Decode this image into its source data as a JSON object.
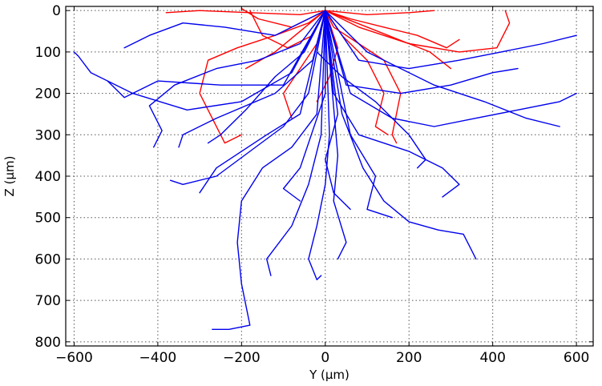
{
  "chart_data": {
    "type": "line",
    "title": "",
    "xlabel": "Y (μm)",
    "ylabel": "Z (μm)",
    "xlim": [
      -620,
      640
    ],
    "ylim": [
      810,
      -10
    ],
    "y_inverted": true,
    "grid": true,
    "x_ticks": [
      -600,
      -400,
      -200,
      0,
      200,
      400,
      600
    ],
    "y_ticks": [
      0,
      100,
      200,
      300,
      400,
      500,
      600,
      700,
      800
    ],
    "x_tick_labels": [
      "−600",
      "−400",
      "−200",
      "0",
      "200",
      "400",
      "600"
    ],
    "y_tick_labels": [
      "0",
      "100",
      "200",
      "300",
      "400",
      "500",
      "600",
      "700",
      "800"
    ],
    "series": [
      {
        "color": "#ff0000",
        "paths": [
          [
            [
              0,
              0
            ],
            [
              -40,
              30
            ],
            [
              -120,
              60
            ],
            [
              -210,
              90
            ],
            [
              -280,
              120
            ],
            [
              -300,
              200
            ],
            [
              -240,
              320
            ],
            [
              -200,
              300
            ]
          ],
          [
            [
              0,
              0
            ],
            [
              -60,
              10
            ],
            [
              -180,
              5
            ],
            [
              -300,
              0
            ],
            [
              -380,
              5
            ]
          ],
          [
            [
              0,
              0
            ],
            [
              -30,
              60
            ],
            [
              -90,
              90
            ],
            [
              -150,
              60
            ],
            [
              -180,
              0
            ]
          ],
          [
            [
              0,
              0
            ],
            [
              20,
              40
            ],
            [
              80,
              80
            ],
            [
              140,
              120
            ],
            [
              180,
              200
            ],
            [
              160,
              300
            ],
            [
              170,
              320
            ]
          ],
          [
            [
              0,
              0
            ],
            [
              60,
              20
            ],
            [
              140,
              40
            ],
            [
              220,
              60
            ],
            [
              290,
              90
            ],
            [
              320,
              70
            ]
          ],
          [
            [
              0,
              0
            ],
            [
              100,
              10
            ],
            [
              200,
              5
            ],
            [
              260,
              0
            ]
          ],
          [
            [
              0,
              0
            ],
            [
              80,
              40
            ],
            [
              200,
              80
            ],
            [
              320,
              100
            ],
            [
              410,
              90
            ],
            [
              440,
              30
            ],
            [
              430,
              0
            ]
          ],
          [
            [
              0,
              0
            ],
            [
              40,
              60
            ],
            [
              100,
              120
            ],
            [
              140,
              200
            ],
            [
              120,
              280
            ],
            [
              150,
              300
            ]
          ],
          [
            [
              0,
              0
            ],
            [
              -20,
              80
            ],
            [
              -60,
              140
            ],
            [
              -100,
              200
            ],
            [
              -80,
              260
            ]
          ],
          [
            [
              0,
              0
            ],
            [
              -80,
              40
            ],
            [
              -160,
              20
            ],
            [
              -200,
              -5
            ]
          ],
          [
            [
              0,
              0
            ],
            [
              30,
              90
            ],
            [
              10,
              160
            ],
            [
              -20,
              220
            ]
          ],
          [
            [
              0,
              0
            ],
            [
              -120,
              100
            ],
            [
              -190,
              140
            ]
          ],
          [
            [
              0,
              0
            ],
            [
              150,
              60
            ],
            [
              250,
              100
            ],
            [
              300,
              140
            ]
          ]
        ]
      },
      {
        "color": "#0000ee",
        "paths": [
          [
            [
              0,
              0
            ],
            [
              -60,
              80
            ],
            [
              -160,
              120
            ],
            [
              -260,
              140
            ],
            [
              -360,
              180
            ],
            [
              -420,
              230
            ],
            [
              -390,
              290
            ],
            [
              -410,
              330
            ]
          ],
          [
            [
              0,
              0
            ],
            [
              -80,
              150
            ],
            [
              -200,
              220
            ],
            [
              -330,
              240
            ],
            [
              -460,
              200
            ],
            [
              -560,
              150
            ],
            [
              -590,
              110
            ],
            [
              -600,
              100
            ]
          ],
          [
            [
              0,
              0
            ],
            [
              -40,
              200
            ],
            [
              -100,
              280
            ],
            [
              -180,
              340
            ],
            [
              -260,
              400
            ],
            [
              -340,
              420
            ],
            [
              -370,
              410
            ]
          ],
          [
            [
              0,
              0
            ],
            [
              -20,
              250
            ],
            [
              -80,
              330
            ],
            [
              -150,
              380
            ],
            [
              -200,
              460
            ],
            [
              -210,
              560
            ],
            [
              -200,
              660
            ],
            [
              -180,
              760
            ],
            [
              -230,
              770
            ],
            [
              -270,
              770
            ]
          ],
          [
            [
              0,
              0
            ],
            [
              -10,
              300
            ],
            [
              -40,
              420
            ],
            [
              -80,
              520
            ],
            [
              -140,
              600
            ],
            [
              -130,
              640
            ]
          ],
          [
            [
              0,
              0
            ],
            [
              10,
              300
            ],
            [
              0,
              420
            ],
            [
              -20,
              520
            ],
            [
              -40,
              600
            ],
            [
              -20,
              650
            ],
            [
              -10,
              640
            ]
          ],
          [
            [
              0,
              0
            ],
            [
              40,
              250
            ],
            [
              90,
              380
            ],
            [
              140,
              460
            ],
            [
              200,
              510
            ],
            [
              270,
              530
            ],
            [
              330,
              540
            ],
            [
              350,
              580
            ],
            [
              360,
              600
            ]
          ],
          [
            [
              0,
              0
            ],
            [
              60,
              200
            ],
            [
              160,
              260
            ],
            [
              260,
              280
            ],
            [
              360,
              260
            ],
            [
              460,
              240
            ],
            [
              560,
              220
            ],
            [
              600,
              200
            ]
          ],
          [
            [
              0,
              0
            ],
            [
              80,
              120
            ],
            [
              200,
              140
            ],
            [
              320,
              120
            ],
            [
              420,
              100
            ],
            [
              520,
              80
            ],
            [
              600,
              60
            ]
          ],
          [
            [
              0,
              0
            ],
            [
              100,
              100
            ],
            [
              260,
              180
            ],
            [
              380,
              220
            ],
            [
              480,
              260
            ],
            [
              560,
              280
            ]
          ],
          [
            [
              0,
              0
            ],
            [
              30,
              350
            ],
            [
              20,
              460
            ],
            [
              50,
              560
            ],
            [
              30,
              600
            ]
          ],
          [
            [
              0,
              0
            ],
            [
              60,
              300
            ],
            [
              120,
              400
            ],
            [
              100,
              480
            ],
            [
              160,
              500
            ]
          ],
          [
            [
              0,
              0
            ],
            [
              -120,
              60
            ],
            [
              -240,
              40
            ],
            [
              -340,
              30
            ],
            [
              -420,
              60
            ],
            [
              -480,
              90
            ]
          ],
          [
            [
              0,
              0
            ],
            [
              -30,
              120
            ],
            [
              -120,
              200
            ],
            [
              -260,
              260
            ],
            [
              -340,
              300
            ],
            [
              -350,
              330
            ]
          ],
          [
            [
              0,
              0
            ],
            [
              20,
              200
            ],
            [
              80,
              300
            ],
            [
              200,
              340
            ],
            [
              280,
              380
            ],
            [
              320,
              420
            ],
            [
              280,
              450
            ]
          ],
          [
            [
              0,
              0
            ],
            [
              -60,
              250
            ],
            [
              -140,
              300
            ],
            [
              -260,
              380
            ],
            [
              -300,
              440
            ]
          ],
          [
            [
              0,
              0
            ],
            [
              -100,
              180
            ],
            [
              -250,
              180
            ],
            [
              -400,
              170
            ],
            [
              -480,
              210
            ],
            [
              -520,
              170
            ]
          ],
          [
            [
              0,
              0
            ],
            [
              50,
              180
            ],
            [
              180,
              200
            ],
            [
              300,
              180
            ],
            [
              400,
              150
            ],
            [
              460,
              140
            ]
          ],
          [
            [
              0,
              0
            ],
            [
              0,
              200
            ],
            [
              -60,
              380
            ],
            [
              -100,
              430
            ],
            [
              -60,
              460
            ]
          ],
          [
            [
              0,
              0
            ],
            [
              30,
              250
            ],
            [
              0,
              360
            ],
            [
              20,
              440
            ],
            [
              60,
              480
            ]
          ],
          [
            [
              0,
              0
            ],
            [
              -20,
              100
            ],
            [
              40,
              160
            ],
            [
              120,
              220
            ],
            [
              200,
              300
            ],
            [
              240,
              360
            ],
            [
              220,
              380
            ]
          ],
          [
            [
              0,
              0
            ],
            [
              -50,
              100
            ],
            [
              -120,
              160
            ],
            [
              -190,
              240
            ],
            [
              -250,
              300
            ],
            [
              -280,
              320
            ]
          ]
        ]
      }
    ]
  }
}
